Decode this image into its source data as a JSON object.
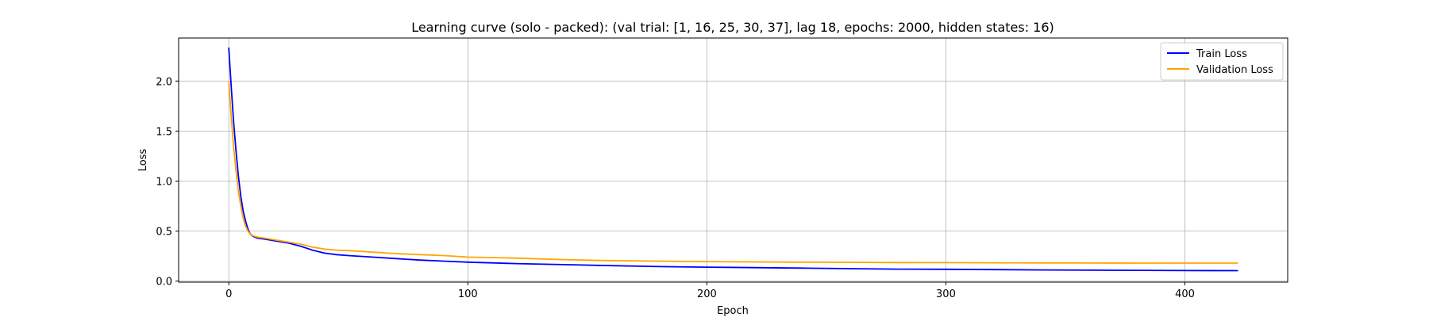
{
  "chart_data": {
    "type": "line",
    "title": "Learning curve (solo - packed): (val trial: [1, 16, 25, 30, 37], lag 18, epochs: 2000, hidden states: 16)",
    "xlabel": "Epoch",
    "ylabel": "Loss",
    "xlim": [
      -21,
      443
    ],
    "ylim": [
      -0.01,
      2.43
    ],
    "xticks": [
      0,
      100,
      200,
      300,
      400
    ],
    "yticks": [
      0.0,
      0.5,
      1.0,
      1.5,
      2.0
    ],
    "xtick_labels": [
      "0",
      "100",
      "200",
      "300",
      "400"
    ],
    "ytick_labels": [
      "0.0",
      "0.5",
      "1.0",
      "1.5",
      "2.0"
    ],
    "grid": true,
    "legend_position": "top-right",
    "series": [
      {
        "name": "Train Loss",
        "color": "#0000ff",
        "x": [
          0,
          1,
          2,
          3,
          4,
          5,
          6,
          7,
          8,
          9,
          10,
          12,
          15,
          20,
          25,
          30,
          35,
          40,
          45,
          50,
          60,
          70,
          80,
          90,
          100,
          120,
          140,
          160,
          180,
          200,
          220,
          240,
          260,
          280,
          300,
          320,
          340,
          360,
          380,
          400,
          422
        ],
        "y": [
          2.33,
          1.95,
          1.6,
          1.3,
          1.05,
          0.85,
          0.7,
          0.6,
          0.52,
          0.47,
          0.45,
          0.43,
          0.42,
          0.4,
          0.38,
          0.35,
          0.31,
          0.28,
          0.265,
          0.255,
          0.24,
          0.225,
          0.21,
          0.2,
          0.19,
          0.175,
          0.165,
          0.155,
          0.145,
          0.14,
          0.135,
          0.13,
          0.125,
          0.12,
          0.118,
          0.115,
          0.112,
          0.11,
          0.108,
          0.106,
          0.105
        ]
      },
      {
        "name": "Validation Loss",
        "color": "#ffa500",
        "x": [
          0,
          1,
          2,
          3,
          4,
          5,
          6,
          7,
          8,
          9,
          10,
          12,
          15,
          20,
          25,
          30,
          35,
          40,
          45,
          50,
          60,
          70,
          80,
          90,
          100,
          120,
          140,
          160,
          180,
          200,
          220,
          240,
          260,
          280,
          300,
          320,
          340,
          360,
          380,
          400,
          422
        ],
        "y": [
          1.99,
          1.65,
          1.35,
          1.1,
          0.9,
          0.75,
          0.63,
          0.55,
          0.5,
          0.47,
          0.455,
          0.44,
          0.43,
          0.41,
          0.39,
          0.37,
          0.34,
          0.32,
          0.31,
          0.305,
          0.29,
          0.275,
          0.265,
          0.255,
          0.24,
          0.23,
          0.215,
          0.205,
          0.2,
          0.195,
          0.192,
          0.19,
          0.188,
          0.186,
          0.185,
          0.183,
          0.182,
          0.181,
          0.18,
          0.18,
          0.18
        ]
      }
    ]
  }
}
